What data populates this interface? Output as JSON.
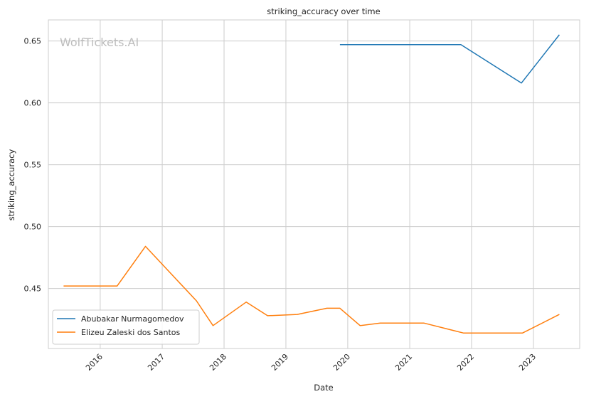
{
  "chart_data": {
    "type": "line",
    "title": "striking_accuracy over time",
    "xlabel": "Date",
    "ylabel": "striking_accuracy",
    "watermark": "WolfTickets.AI",
    "xlim": [
      "2015-03-01",
      "2023-10-01"
    ],
    "ylim": [
      0.4015,
      0.667
    ],
    "x_ticks": [
      "2016",
      "2017",
      "2018",
      "2019",
      "2020",
      "2021",
      "2022",
      "2023"
    ],
    "y_ticks": [
      "0.45",
      "0.50",
      "0.55",
      "0.60",
      "0.65"
    ],
    "grid": true,
    "legend_position": "lower-left",
    "series": [
      {
        "name": "Abubakar Nurmagomedov",
        "color": "#1f77b4",
        "points": [
          [
            "2019-11-16",
            0.647
          ],
          [
            "2021-10-30",
            0.647
          ],
          [
            "2022-10-22",
            0.616
          ],
          [
            "2023-06-03",
            0.655
          ]
        ]
      },
      {
        "name": "Elizeu Zaleski dos Santos",
        "color": "#ff7f0e",
        "points": [
          [
            "2015-05-30",
            0.452
          ],
          [
            "2016-04-10",
            0.452
          ],
          [
            "2016-09-24",
            0.484
          ],
          [
            "2017-07-22",
            0.44
          ],
          [
            "2017-10-28",
            0.42
          ],
          [
            "2018-05-12",
            0.439
          ],
          [
            "2018-09-15",
            0.428
          ],
          [
            "2019-03-09",
            0.429
          ],
          [
            "2019-08-31",
            0.434
          ],
          [
            "2019-11-16",
            0.434
          ],
          [
            "2020-03-14",
            0.42
          ],
          [
            "2020-07-11",
            0.422
          ],
          [
            "2021-03-27",
            0.422
          ],
          [
            "2021-11-13",
            0.414
          ],
          [
            "2022-10-29",
            0.414
          ],
          [
            "2023-06-03",
            0.429
          ]
        ]
      }
    ]
  }
}
